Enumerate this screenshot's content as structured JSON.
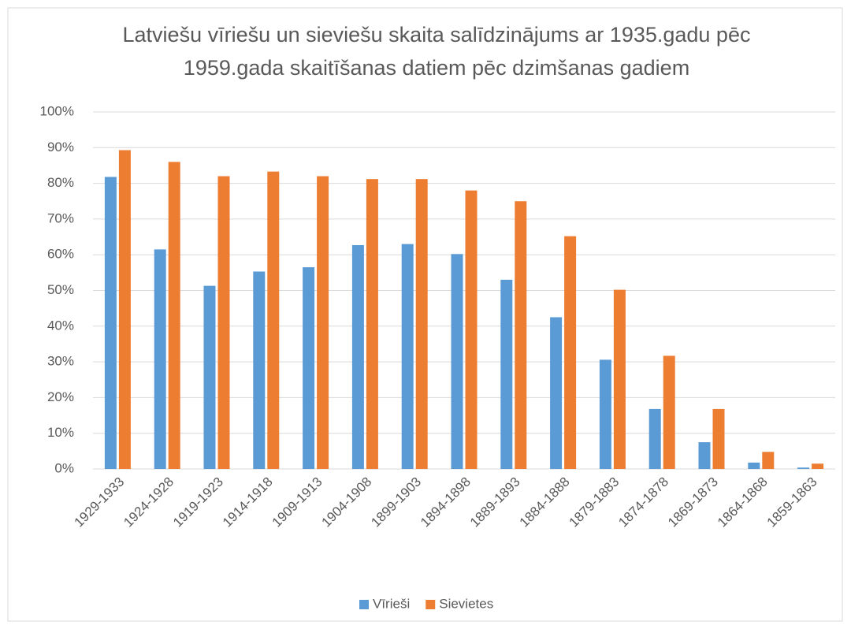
{
  "chart_data": {
    "type": "bar",
    "title": [
      "Latviešu vīriešu un sieviešu skaita salīdzinājums ar 1935.gadu pēc",
      "1959.gada skaitīšanas datiem pēc dzimšanas gadiem"
    ],
    "categories": [
      "1929-1933",
      "1924-1928",
      "1919-1923",
      "1914-1918",
      "1909-1913",
      "1904-1908",
      "1899-1903",
      "1894-1898",
      "1889-1893",
      "1884-1888",
      "1879-1883",
      "1874-1878",
      "1869-1873",
      "1864-1868",
      "1859-1863"
    ],
    "series": [
      {
        "name": "Vīrieši",
        "color": "#5b9bd5",
        "values": [
          81.8,
          61.5,
          51.3,
          55.3,
          56.5,
          62.7,
          63,
          60.2,
          53,
          42.5,
          30.6,
          16.8,
          7.5,
          1.8,
          0.4
        ]
      },
      {
        "name": "Sievietes",
        "color": "#ed7d31",
        "values": [
          89.3,
          86,
          82,
          83.3,
          82,
          81.2,
          81.2,
          78,
          75,
          65.2,
          50.2,
          31.7,
          16.8,
          4.8,
          1.5
        ]
      }
    ],
    "ylim": [
      0,
      100
    ],
    "yticks": [
      {
        "value": 0,
        "label": "0%"
      },
      {
        "value": 10,
        "label": "10%"
      },
      {
        "value": 20,
        "label": "20%"
      },
      {
        "value": 30,
        "label": "30%"
      },
      {
        "value": 40,
        "label": "40%"
      },
      {
        "value": 50,
        "label": "50%"
      },
      {
        "value": 60,
        "label": "60%"
      },
      {
        "value": 70,
        "label": "70%"
      },
      {
        "value": 80,
        "label": "80%"
      },
      {
        "value": 90,
        "label": "90%"
      },
      {
        "value": 100,
        "label": "100%"
      }
    ],
    "grid": true,
    "legend": "bottom"
  }
}
